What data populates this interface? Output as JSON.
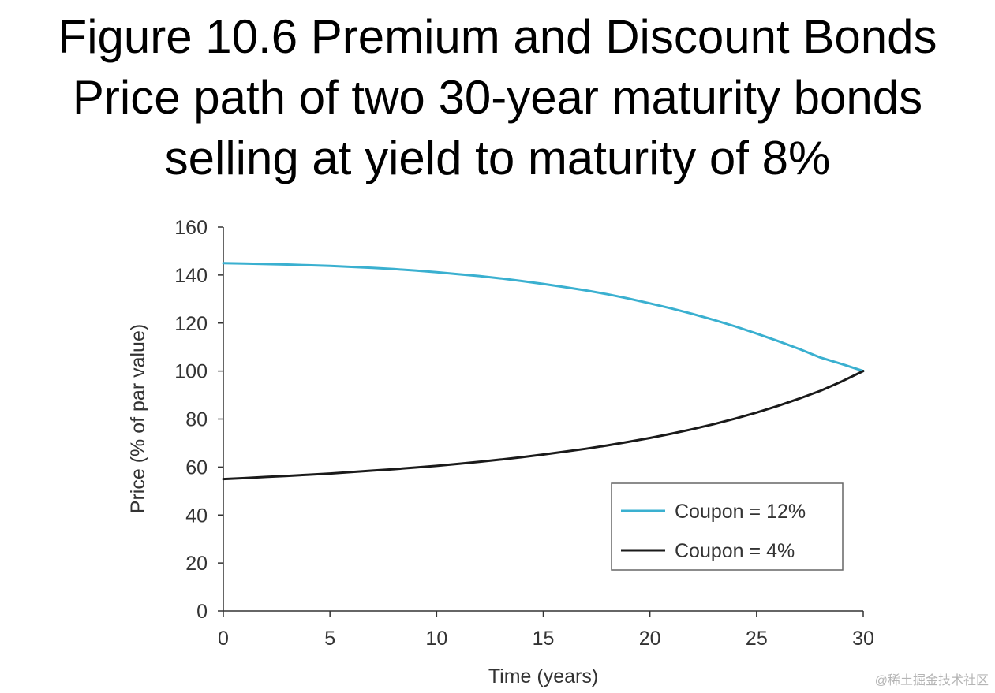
{
  "title_lines": [
    "Figure 10.6 Premium and Discount Bonds",
    "Price path of two 30-year maturity bonds",
    "selling at yield to maturity of 8%"
  ],
  "watermark": "@稀土掘金技术社区",
  "colors": {
    "premium": "#3ab0d0",
    "discount": "#1a1a1a",
    "axis": "#333333"
  },
  "chart_data": {
    "type": "line",
    "title": "Figure 10.6 Premium and Discount Bonds — Price path of two 30-year maturity bonds selling at yield to maturity of 8%",
    "xlabel": "Time (years)",
    "ylabel": "Price (% of par value)",
    "xlim": [
      0,
      30
    ],
    "ylim": [
      0,
      160
    ],
    "x_ticks": [
      0,
      5,
      10,
      15,
      20,
      25,
      30
    ],
    "y_ticks": [
      0,
      20,
      40,
      60,
      80,
      100,
      120,
      140,
      160
    ],
    "grid": false,
    "legend_position": "bottom-right",
    "x": [
      0,
      1,
      2,
      3,
      4,
      5,
      6,
      7,
      8,
      9,
      10,
      11,
      12,
      13,
      14,
      15,
      16,
      17,
      18,
      19,
      20,
      21,
      22,
      23,
      24,
      25,
      26,
      27,
      28,
      29,
      30
    ],
    "series": [
      {
        "name": "Coupon = 12%",
        "color": "#3ab0d0",
        "values": [
          145.0,
          144.8,
          144.6,
          144.4,
          144.1,
          143.8,
          143.4,
          143.0,
          142.5,
          141.9,
          141.2,
          140.4,
          139.6,
          138.6,
          137.5,
          136.3,
          135.0,
          133.6,
          132.0,
          130.2,
          128.2,
          126.1,
          123.8,
          121.3,
          118.6,
          115.6,
          112.5,
          109.2,
          105.6,
          102.9,
          100.0
        ]
      },
      {
        "name": "Coupon = 4%",
        "color": "#1a1a1a",
        "values": [
          55.0,
          55.4,
          55.9,
          56.3,
          56.8,
          57.3,
          57.9,
          58.5,
          59.1,
          59.8,
          60.5,
          61.3,
          62.2,
          63.1,
          64.1,
          65.2,
          66.4,
          67.6,
          69.0,
          70.5,
          72.1,
          73.9,
          75.8,
          77.9,
          80.2,
          82.7,
          85.5,
          88.5,
          91.8,
          95.7,
          100.0
        ]
      }
    ]
  }
}
